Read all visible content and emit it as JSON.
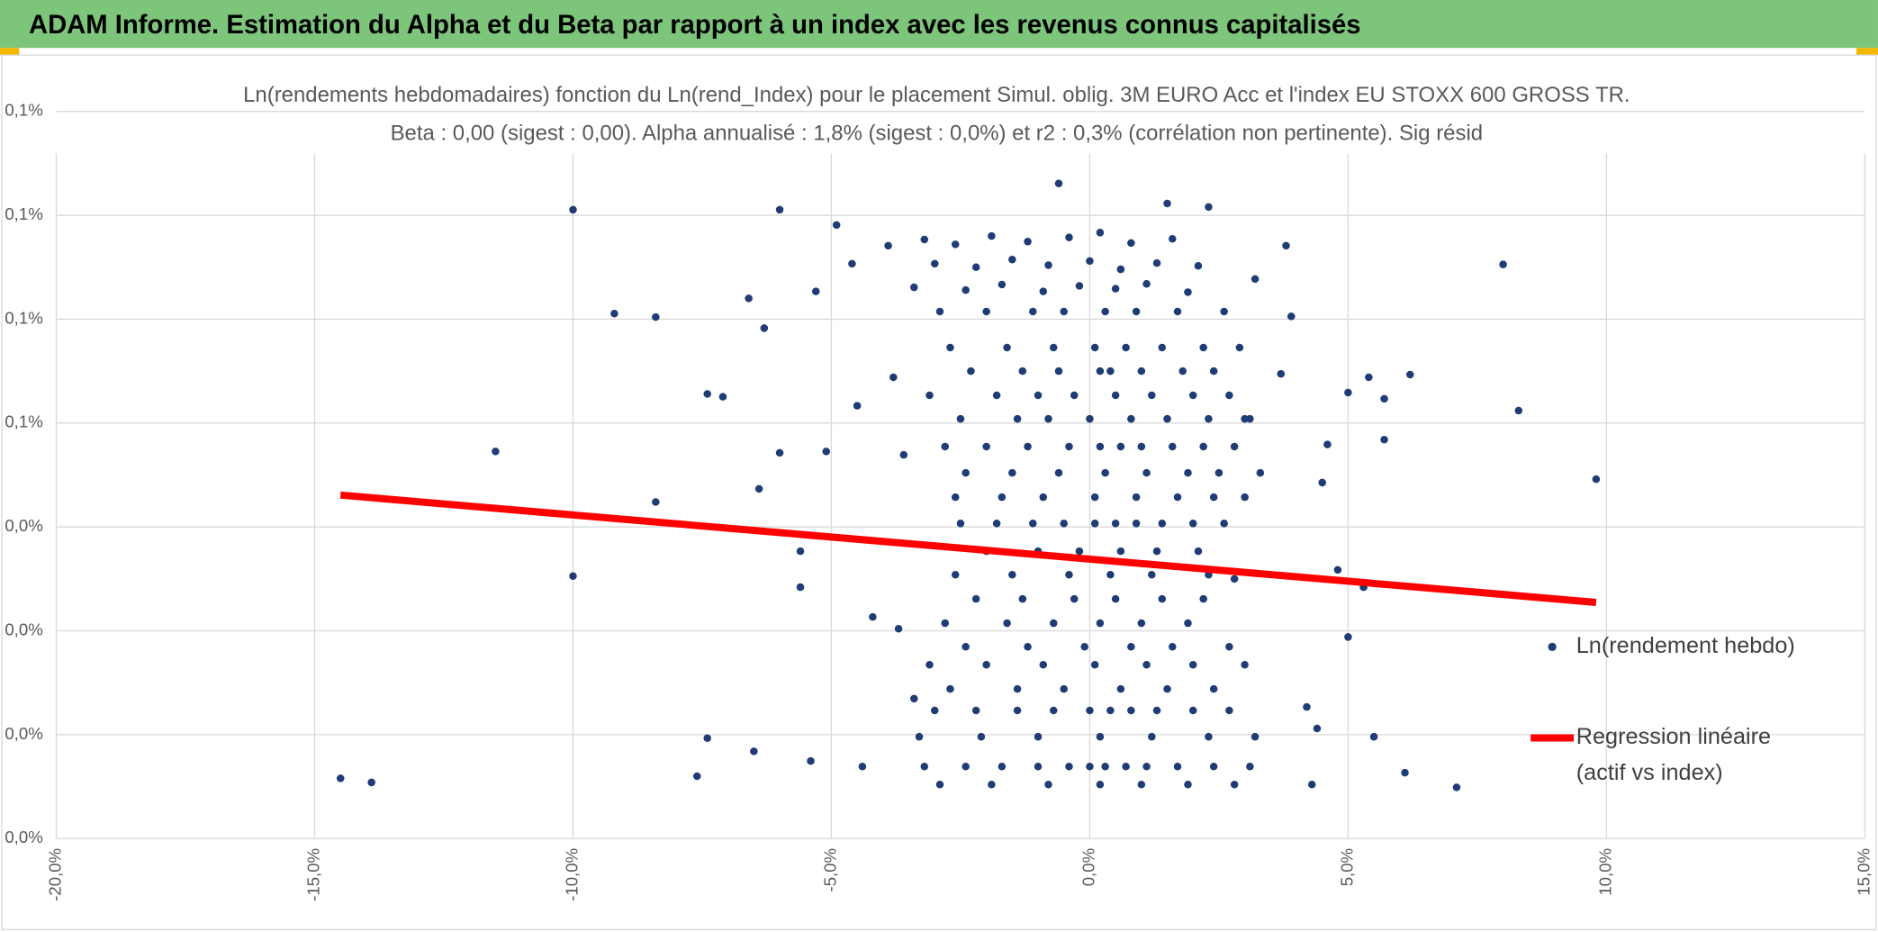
{
  "header": {
    "title": "ADAM Informe. Estimation du Alpha et du Beta par rapport à un index avec les revenus connus capitalisés"
  },
  "chart_data": {
    "type": "scatter",
    "title": "Ln(rendements hebdomadaires) fonction du Ln(rend_Index) pour le placement Simul. oblig. 3M EURO Acc et l'index EU STOXX 600 GROSS TR.",
    "subtitle": "Beta : 0,00 (sigest : 0,00). Alpha annualisé : 1,8% (sigest : 0,0%) et r2 : 0,3% (corrélation non pertinente). Sig résid",
    "xlim": [
      -20,
      15
    ],
    "xticks": [
      {
        "value": -20,
        "label": "-20,0%"
      },
      {
        "value": -15,
        "label": "-15,0%"
      },
      {
        "value": -10,
        "label": "-10,0%"
      },
      {
        "value": -5,
        "label": "-5,0%"
      },
      {
        "value": 0,
        "label": "0,0%"
      },
      {
        "value": 5,
        "label": "5,0%"
      },
      {
        "value": 10,
        "label": "10,0%"
      },
      {
        "value": 15,
        "label": "15,0%"
      }
    ],
    "ylim": [
      0,
      0.105
    ],
    "yticks": [
      {
        "value": 0,
        "label": "0,0%"
      },
      {
        "value": 0.015,
        "label": "0,0%"
      },
      {
        "value": 0.03,
        "label": "0,0%"
      },
      {
        "value": 0.045,
        "label": "0,0%"
      },
      {
        "value": 0.06,
        "label": "0,1%"
      },
      {
        "value": 0.075,
        "label": "0,1%"
      },
      {
        "value": 0.09,
        "label": "0,1%"
      },
      {
        "value": 0.105,
        "label": "0,1%"
      }
    ],
    "grid": true,
    "legend": "right",
    "series": [
      {
        "name": "Ln(rendement hebdo)",
        "type": "scatter",
        "color": "#1f3c74",
        "x": [
          -3.2,
          -2.6,
          -1.9,
          -1.2,
          -0.4,
          0.2,
          0.8,
          1.6,
          -3.0,
          -2.2,
          -1.5,
          -0.8,
          0.0,
          0.6,
          1.3,
          2.1,
          -3.4,
          -2.4,
          -1.7,
          -0.9,
          -0.2,
          0.5,
          1.1,
          1.9,
          -2.9,
          -2.0,
          -1.1,
          -0.5,
          0.3,
          0.9,
          1.7,
          2.6,
          -2.7,
          -1.6,
          -0.7,
          0.1,
          0.7,
          1.4,
          2.2,
          2.9,
          -2.3,
          -1.3,
          -0.6,
          0.4,
          0.2,
          1.0,
          1.8,
          2.4,
          -3.1,
          -1.8,
          -1.0,
          -0.3,
          0.5,
          1.2,
          2.0,
          2.7,
          -2.5,
          -1.4,
          -0.8,
          0.0,
          0.8,
          1.5,
          2.3,
          3.1,
          -2.8,
          -2.0,
          -1.2,
          -0.4,
          0.2,
          0.6,
          1.0,
          1.6,
          2.2,
          2.8,
          -2.4,
          -1.5,
          -0.6,
          0.3,
          1.1,
          1.9,
          2.5,
          3.3,
          -2.6,
          -1.7,
          -0.9,
          0.1,
          0.9,
          1.7,
          2.4,
          3.0,
          -2.5,
          -1.8,
          -1.1,
          -0.5,
          0.1,
          0.5,
          0.9,
          1.4,
          2.0,
          2.6,
          -2.0,
          -1.0,
          -0.2,
          0.6,
          1.3,
          2.1,
          -2.6,
          -1.5,
          -0.4,
          0.4,
          1.2,
          2.3,
          -2.2,
          -1.3,
          -0.3,
          0.5,
          1.4,
          2.2,
          -2.8,
          -1.6,
          -0.7,
          0.2,
          1.0,
          1.9,
          -2.4,
          -1.2,
          -0.1,
          0.8,
          1.6,
          2.7,
          -3.1,
          -2.0,
          -0.9,
          0.1,
          1.1,
          2.0,
          3.0,
          -2.7,
          -1.4,
          -0.5,
          0.6,
          1.5,
          2.4,
          -3.0,
          -2.2,
          -1.4,
          -0.7,
          0.0,
          0.4,
          0.8,
          1.3,
          2.0,
          2.7,
          -3.3,
          -2.1,
          -1.0,
          0.2,
          1.2,
          2.3,
          3.2,
          -3.2,
          -2.4,
          -1.7,
          -1.0,
          -0.4,
          0.0,
          0.3,
          0.7,
          1.1,
          1.7,
          2.4,
          3.1,
          -2.9,
          -1.9,
          -0.8,
          0.2,
          1.0,
          1.9,
          2.8,
          -14.5,
          -13.9,
          -11.5,
          -10.0,
          -10.0,
          -9.2,
          -8.4,
          -8.4,
          -7.6,
          -7.4,
          -7.4,
          -7.1,
          -6.6,
          -6.5,
          -6.3,
          -6.4,
          -6.0,
          -6.0,
          -5.6,
          -5.6,
          -5.3,
          -5.4,
          -5.1,
          -4.9,
          -4.6,
          -4.5,
          -4.4,
          -4.2,
          -3.8,
          -3.9,
          -3.7,
          -3.6,
          -3.4,
          8.0,
          8.3,
          9.8,
          6.2,
          6.1,
          7.1,
          5.7,
          5.7,
          5.4,
          5.0,
          5.0,
          5.5,
          4.6,
          4.5,
          4.4,
          3.8,
          3.9,
          3.7,
          4.2,
          4.3,
          3.2,
          3.0,
          2.3,
          -0.6,
          1.5,
          2.8,
          4.8,
          5.3
        ],
        "values": [
          0.0865,
          0.0858,
          0.087,
          0.0862,
          0.0868,
          0.0875,
          0.086,
          0.0866,
          0.083,
          0.0825,
          0.0836,
          0.0828,
          0.0834,
          0.0822,
          0.0831,
          0.0827,
          0.0796,
          0.0792,
          0.08,
          0.079,
          0.0798,
          0.0794,
          0.0801,
          0.0789,
          0.0761,
          0.0761,
          0.0761,
          0.0761,
          0.0761,
          0.0761,
          0.0761,
          0.0761,
          0.0709,
          0.0709,
          0.0709,
          0.0709,
          0.0709,
          0.0709,
          0.0709,
          0.0709,
          0.0675,
          0.0675,
          0.0675,
          0.0675,
          0.0675,
          0.0675,
          0.0675,
          0.0675,
          0.064,
          0.064,
          0.064,
          0.064,
          0.064,
          0.064,
          0.064,
          0.064,
          0.0606,
          0.0606,
          0.0606,
          0.0606,
          0.0606,
          0.0606,
          0.0606,
          0.0606,
          0.0566,
          0.0566,
          0.0566,
          0.0566,
          0.0566,
          0.0566,
          0.0566,
          0.0566,
          0.0566,
          0.0566,
          0.0528,
          0.0528,
          0.0528,
          0.0528,
          0.0528,
          0.0528,
          0.0528,
          0.0528,
          0.0493,
          0.0493,
          0.0493,
          0.0493,
          0.0493,
          0.0493,
          0.0493,
          0.0493,
          0.0455,
          0.0455,
          0.0455,
          0.0455,
          0.0455,
          0.0455,
          0.0455,
          0.0455,
          0.0455,
          0.0455,
          0.0415,
          0.0415,
          0.0415,
          0.0415,
          0.0415,
          0.0415,
          0.0381,
          0.0381,
          0.0381,
          0.0381,
          0.0381,
          0.0381,
          0.0346,
          0.0346,
          0.0346,
          0.0346,
          0.0346,
          0.0346,
          0.0311,
          0.0311,
          0.0311,
          0.0311,
          0.0311,
          0.0311,
          0.0277,
          0.0277,
          0.0277,
          0.0277,
          0.0277,
          0.0277,
          0.0251,
          0.0251,
          0.0251,
          0.0251,
          0.0251,
          0.0251,
          0.0251,
          0.0216,
          0.0216,
          0.0216,
          0.0216,
          0.0216,
          0.0216,
          0.0185,
          0.0185,
          0.0185,
          0.0185,
          0.0185,
          0.0185,
          0.0185,
          0.0185,
          0.0185,
          0.0185,
          0.0147,
          0.0147,
          0.0147,
          0.0147,
          0.0147,
          0.0147,
          0.0147,
          0.0104,
          0.0104,
          0.0104,
          0.0104,
          0.0104,
          0.0104,
          0.0104,
          0.0104,
          0.0104,
          0.0104,
          0.0104,
          0.0104,
          0.0078,
          0.0078,
          0.0078,
          0.0078,
          0.0078,
          0.0078,
          0.0078,
          0.0087,
          0.0081,
          0.0559,
          0.0908,
          0.0379,
          0.0758,
          0.0753,
          0.0486,
          0.009,
          0.0145,
          0.0642,
          0.0638,
          0.078,
          0.0126,
          0.0737,
          0.0505,
          0.0908,
          0.0557,
          0.0415,
          0.0363,
          0.079,
          0.0112,
          0.0559,
          0.0886,
          0.083,
          0.0625,
          0.0104,
          0.032,
          0.0666,
          0.0856,
          0.0303,
          0.0554,
          0.0202,
          0.0829,
          0.0618,
          0.0519,
          0.067,
          0.0095,
          0.0074,
          0.0576,
          0.0635,
          0.0666,
          0.0644,
          0.0291,
          0.0147,
          0.0569,
          0.0514,
          0.0159,
          0.0856,
          0.0754,
          0.0671,
          0.019,
          0.0078,
          0.0808,
          0.0606,
          0.0912,
          0.0946,
          0.0917,
          0.0375,
          0.0388,
          0.0363
        ]
      },
      {
        "name": "Regression linéaire (actif vs index)",
        "type": "line",
        "color": "#ff0000",
        "x": [
          -14.5,
          9.8
        ],
        "values": [
          0.0496,
          0.0341
        ]
      }
    ]
  }
}
